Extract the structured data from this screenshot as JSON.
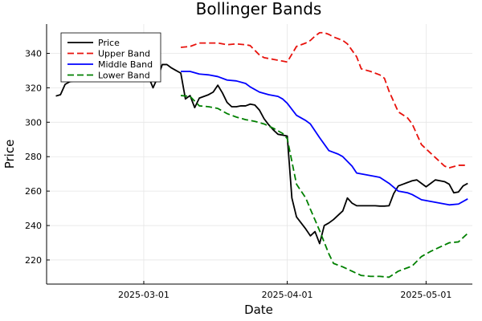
{
  "chart_data": {
    "type": "line",
    "title": "Bollinger Bands",
    "xlabel": "Date",
    "ylabel": "Price",
    "x_start_date": "2025-02-10",
    "xlim": [
      "2025-02-08",
      "2025-05-11"
    ],
    "ylim": [
      206,
      357
    ],
    "x_ticks": [
      {
        "date": "2025-03-01",
        "label": "2025-03-01"
      },
      {
        "date": "2025-04-01",
        "label": "2025-04-01"
      },
      {
        "date": "2025-05-01",
        "label": "2025-05-01"
      }
    ],
    "y_ticks": [
      220,
      240,
      260,
      280,
      300,
      320,
      340
    ],
    "grid": true,
    "legend_position": "top-left",
    "series": [
      {
        "name": "Price",
        "color": "#000000",
        "dash": "solid",
        "points": [
          [
            "2025-02-10",
            315.2
          ],
          [
            "2025-02-11",
            316.0
          ],
          [
            "2025-02-12",
            322.0
          ],
          [
            "2025-02-13",
            323.5
          ],
          [
            "2025-02-14",
            324.0
          ],
          [
            "2025-02-15",
            325.0
          ],
          [
            "2025-02-16",
            326.0
          ],
          [
            "2025-02-17",
            327.0
          ],
          [
            "2025-02-18",
            328.0
          ],
          [
            "2025-02-19",
            328.5
          ],
          [
            "2025-02-20",
            329.0
          ],
          [
            "2025-02-21",
            329.5
          ],
          [
            "2025-02-22",
            330.0
          ],
          [
            "2025-02-23",
            330.0
          ],
          [
            "2025-02-24",
            329.5
          ],
          [
            "2025-02-25",
            329.0
          ],
          [
            "2025-02-26",
            328.5
          ],
          [
            "2025-02-27",
            328.0
          ],
          [
            "2025-02-28",
            327.5
          ],
          [
            "2025-03-01",
            327.0
          ],
          [
            "2025-03-02",
            326.5
          ],
          [
            "2025-03-03",
            320.0
          ],
          [
            "2025-03-04",
            326.0
          ],
          [
            "2025-03-05",
            333.5
          ],
          [
            "2025-03-06",
            333.5
          ],
          [
            "2025-03-07",
            331.5
          ],
          [
            "2025-03-08",
            330.0
          ],
          [
            "2025-03-09",
            328.5
          ],
          [
            "2025-03-10",
            313.5
          ],
          [
            "2025-03-11",
            315.5
          ],
          [
            "2025-03-12",
            308.5
          ],
          [
            "2025-03-13",
            314.0
          ],
          [
            "2025-03-14",
            315.0
          ],
          [
            "2025-03-15",
            316.0
          ],
          [
            "2025-03-16",
            317.5
          ],
          [
            "2025-03-17",
            321.5
          ],
          [
            "2025-03-18",
            317.0
          ],
          [
            "2025-03-19",
            311.5
          ],
          [
            "2025-03-20",
            309.0
          ],
          [
            "2025-03-21",
            309.0
          ],
          [
            "2025-03-22",
            309.5
          ],
          [
            "2025-03-23",
            309.5
          ],
          [
            "2025-03-24",
            310.5
          ],
          [
            "2025-03-25",
            310.0
          ],
          [
            "2025-03-26",
            307.0
          ],
          [
            "2025-03-27",
            302.0
          ],
          [
            "2025-03-28",
            298.5
          ],
          [
            "2025-03-29",
            295.5
          ],
          [
            "2025-03-30",
            293.0
          ],
          [
            "2025-03-31",
            292.5
          ],
          [
            "2025-04-01",
            292.0
          ],
          [
            "2025-04-02",
            256.0
          ],
          [
            "2025-04-03",
            245.0
          ],
          [
            "2025-04-04",
            241.5
          ],
          [
            "2025-04-05",
            238.0
          ],
          [
            "2025-04-06",
            234.0
          ],
          [
            "2025-04-07",
            236.5
          ],
          [
            "2025-04-08",
            229.5
          ],
          [
            "2025-04-09",
            240.0
          ],
          [
            "2025-04-10",
            241.5
          ],
          [
            "2025-04-11",
            243.5
          ],
          [
            "2025-04-12",
            246.0
          ],
          [
            "2025-04-13",
            248.5
          ],
          [
            "2025-04-14",
            256.0
          ],
          [
            "2025-04-15",
            253.0
          ],
          [
            "2025-04-16",
            251.5
          ],
          [
            "2025-04-17",
            251.5
          ],
          [
            "2025-04-18",
            251.5
          ],
          [
            "2025-04-19",
            251.5
          ],
          [
            "2025-04-20",
            251.5
          ],
          [
            "2025-04-21",
            251.3
          ],
          [
            "2025-04-22",
            251.3
          ],
          [
            "2025-04-23",
            251.5
          ],
          [
            "2025-04-24",
            258.5
          ],
          [
            "2025-04-25",
            263.0
          ],
          [
            "2025-04-26",
            264.0
          ],
          [
            "2025-04-27",
            265.0
          ],
          [
            "2025-04-28",
            266.0
          ],
          [
            "2025-04-29",
            266.5
          ],
          [
            "2025-04-30",
            264.5
          ],
          [
            "2025-05-01",
            262.5
          ],
          [
            "2025-05-02",
            264.5
          ],
          [
            "2025-05-03",
            266.5
          ],
          [
            "2025-05-04",
            266.0
          ],
          [
            "2025-05-05",
            265.5
          ],
          [
            "2025-05-06",
            264.0
          ],
          [
            "2025-05-07",
            259.0
          ],
          [
            "2025-05-08",
            259.5
          ],
          [
            "2025-05-09",
            263.0
          ],
          [
            "2025-05-10",
            264.5
          ]
        ]
      },
      {
        "name": "Upper Band",
        "color": "#e8120c",
        "dash": "dashed",
        "points": [
          [
            "2025-03-09",
            343.5
          ],
          [
            "2025-03-11",
            344.0
          ],
          [
            "2025-03-13",
            346.0
          ],
          [
            "2025-03-15",
            346.0
          ],
          [
            "2025-03-17",
            346.0
          ],
          [
            "2025-03-19",
            345.0
          ],
          [
            "2025-03-21",
            345.5
          ],
          [
            "2025-03-23",
            345.0
          ],
          [
            "2025-03-24",
            344.5
          ],
          [
            "2025-03-26",
            339.0
          ],
          [
            "2025-03-27",
            337.5
          ],
          [
            "2025-03-29",
            336.5
          ],
          [
            "2025-03-31",
            335.5
          ],
          [
            "2025-04-01",
            335.0
          ],
          [
            "2025-04-03",
            344.0
          ],
          [
            "2025-04-05",
            346.0
          ],
          [
            "2025-04-06",
            347.5
          ],
          [
            "2025-04-07",
            350.0
          ],
          [
            "2025-04-08",
            352.0
          ],
          [
            "2025-04-09",
            352.0
          ],
          [
            "2025-04-10",
            351.0
          ],
          [
            "2025-04-11",
            349.5
          ],
          [
            "2025-04-13",
            347.5
          ],
          [
            "2025-04-14",
            345.5
          ],
          [
            "2025-04-16",
            338.0
          ],
          [
            "2025-04-17",
            331.0
          ],
          [
            "2025-04-19",
            329.5
          ],
          [
            "2025-04-21",
            327.5
          ],
          [
            "2025-04-22",
            325.5
          ],
          [
            "2025-04-23",
            318.0
          ],
          [
            "2025-04-25",
            306.0
          ],
          [
            "2025-04-27",
            302.5
          ],
          [
            "2025-04-28",
            299.0
          ],
          [
            "2025-04-30",
            287.0
          ],
          [
            "2025-05-01",
            284.5
          ],
          [
            "2025-05-03",
            279.5
          ],
          [
            "2025-05-05",
            274.5
          ],
          [
            "2025-05-06",
            273.5
          ],
          [
            "2025-05-08",
            275.0
          ],
          [
            "2025-05-10",
            275.0
          ]
        ]
      },
      {
        "name": "Middle Band",
        "color": "#0000ff",
        "dash": "solid",
        "points": [
          [
            "2025-03-09",
            329.5
          ],
          [
            "2025-03-11",
            329.5
          ],
          [
            "2025-03-13",
            328.0
          ],
          [
            "2025-03-15",
            327.5
          ],
          [
            "2025-03-17",
            326.5
          ],
          [
            "2025-03-19",
            324.5
          ],
          [
            "2025-03-21",
            324.0
          ],
          [
            "2025-03-23",
            322.5
          ],
          [
            "2025-03-24",
            320.5
          ],
          [
            "2025-03-26",
            317.5
          ],
          [
            "2025-03-28",
            316.0
          ],
          [
            "2025-03-30",
            315.0
          ],
          [
            "2025-03-31",
            313.5
          ],
          [
            "2025-04-01",
            311.0
          ],
          [
            "2025-04-03",
            304.0
          ],
          [
            "2025-04-05",
            301.0
          ],
          [
            "2025-04-06",
            299.0
          ],
          [
            "2025-04-08",
            291.0
          ],
          [
            "2025-04-10",
            283.5
          ],
          [
            "2025-04-12",
            281.5
          ],
          [
            "2025-04-13",
            280.0
          ],
          [
            "2025-04-15",
            274.5
          ],
          [
            "2025-04-16",
            270.5
          ],
          [
            "2025-04-18",
            269.5
          ],
          [
            "2025-04-20",
            268.5
          ],
          [
            "2025-04-21",
            268.0
          ],
          [
            "2025-04-23",
            264.5
          ],
          [
            "2025-04-25",
            260.0
          ],
          [
            "2025-04-27",
            259.0
          ],
          [
            "2025-04-28",
            258.0
          ],
          [
            "2025-04-30",
            255.0
          ],
          [
            "2025-05-02",
            254.0
          ],
          [
            "2025-05-04",
            253.0
          ],
          [
            "2025-05-06",
            252.0
          ],
          [
            "2025-05-08",
            252.5
          ],
          [
            "2025-05-10",
            255.5
          ]
        ]
      },
      {
        "name": "Lower Band",
        "color": "#008000",
        "dash": "dashed",
        "points": [
          [
            "2025-03-09",
            315.5
          ],
          [
            "2025-03-11",
            315.0
          ],
          [
            "2025-03-13",
            309.5
          ],
          [
            "2025-03-15",
            309.0
          ],
          [
            "2025-03-17",
            308.0
          ],
          [
            "2025-03-19",
            305.0
          ],
          [
            "2025-03-21",
            303.0
          ],
          [
            "2025-03-23",
            301.5
          ],
          [
            "2025-03-25",
            300.5
          ],
          [
            "2025-03-27",
            299.0
          ],
          [
            "2025-03-29",
            296.5
          ],
          [
            "2025-03-31",
            293.5
          ],
          [
            "2025-04-01",
            290.5
          ],
          [
            "2025-04-03",
            264.0
          ],
          [
            "2025-04-05",
            256.0
          ],
          [
            "2025-04-06",
            249.5
          ],
          [
            "2025-04-08",
            237.0
          ],
          [
            "2025-04-10",
            223.5
          ],
          [
            "2025-04-11",
            218.0
          ],
          [
            "2025-04-13",
            216.0
          ],
          [
            "2025-04-15",
            213.5
          ],
          [
            "2025-04-17",
            211.0
          ],
          [
            "2025-04-19",
            210.5
          ],
          [
            "2025-04-21",
            210.5
          ],
          [
            "2025-04-23",
            210.0
          ],
          [
            "2025-04-25",
            213.5
          ],
          [
            "2025-04-27",
            215.5
          ],
          [
            "2025-04-28",
            216.5
          ],
          [
            "2025-04-30",
            222.0
          ],
          [
            "2025-05-02",
            225.0
          ],
          [
            "2025-05-04",
            227.5
          ],
          [
            "2025-05-06",
            230.0
          ],
          [
            "2025-05-08",
            230.5
          ],
          [
            "2025-05-10",
            235.5
          ]
        ]
      }
    ]
  }
}
